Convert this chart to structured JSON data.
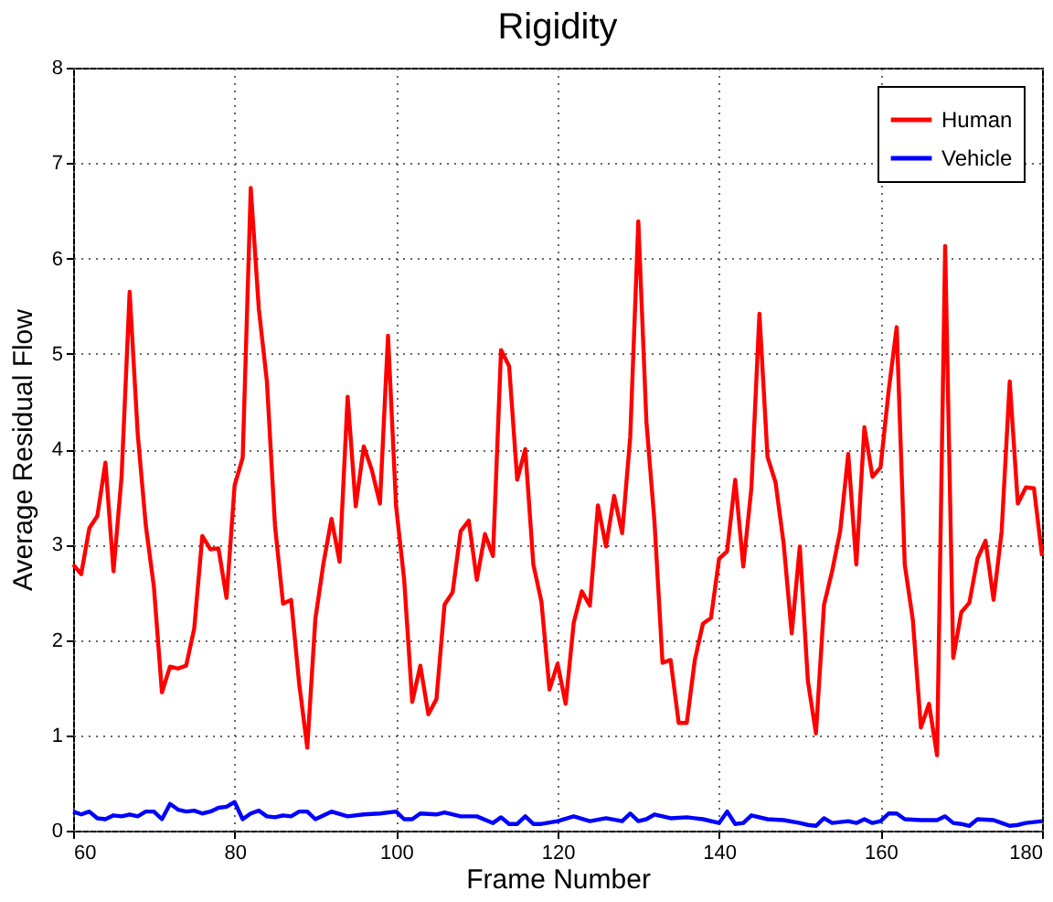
{
  "chart_data": {
    "type": "line",
    "title": "Rigidity",
    "xlabel": "Frame Number",
    "ylabel": "Average Residual Flow",
    "xlim": [
      60,
      180
    ],
    "xticks": [
      60,
      80,
      100,
      120,
      140,
      160,
      180
    ],
    "ylim": [
      0,
      8
    ],
    "yticks": [
      0,
      1,
      2,
      3,
      4,
      5,
      6,
      7,
      8
    ],
    "grid": true,
    "legend": "top right",
    "line_style": "solid",
    "series": [
      {
        "name": "Human",
        "color": "#ff0000",
        "x": [
          60,
          61,
          62,
          63,
          64,
          65,
          66,
          67,
          68,
          69,
          70,
          71,
          72,
          73,
          74,
          75,
          76,
          77,
          78,
          79,
          80,
          81,
          82,
          83,
          84,
          85,
          86,
          87,
          88,
          89,
          90,
          91,
          92,
          93,
          94,
          95,
          96,
          97,
          98,
          99,
          100,
          101,
          102,
          103,
          104,
          105,
          106,
          107,
          108,
          109,
          110,
          111,
          112,
          113,
          114,
          115,
          116,
          117,
          118,
          119,
          120,
          121,
          122,
          123,
          124,
          125,
          126,
          127,
          128,
          129,
          130,
          131,
          132,
          133,
          134,
          135,
          136,
          137,
          138,
          139,
          140,
          141,
          142,
          143,
          144,
          145,
          146,
          147,
          148,
          149,
          150,
          151,
          152,
          153,
          154,
          155,
          156,
          157,
          158,
          159,
          160,
          161,
          162,
          163,
          164,
          165,
          166,
          167,
          168,
          169,
          170,
          171,
          172,
          173,
          174,
          175,
          176,
          177,
          178,
          179,
          180
        ],
        "values": [
          2.79,
          2.69,
          3.17,
          3.3,
          3.86,
          2.72,
          3.71,
          5.65,
          4.16,
          3.2,
          2.56,
          1.45,
          1.72,
          1.7,
          1.73,
          2.12,
          3.09,
          2.95,
          2.96,
          2.44,
          3.62,
          3.91,
          6.74,
          5.47,
          4.71,
          3.2,
          2.38,
          2.42,
          1.54,
          0.87,
          2.22,
          2.8,
          3.27,
          2.82,
          4.55,
          3.4,
          4.03,
          3.78,
          3.43,
          5.19,
          3.4,
          2.63,
          1.35,
          1.73,
          1.22,
          1.38,
          2.37,
          2.5,
          3.14,
          3.25,
          2.63,
          3.11,
          2.88,
          5.04,
          4.87,
          3.68,
          4.0,
          2.79,
          2.4,
          1.48,
          1.75,
          1.33,
          2.18,
          2.51,
          2.36,
          3.41,
          2.98,
          3.51,
          3.12,
          4.13,
          6.39,
          4.29,
          3.24,
          1.76,
          1.79,
          1.13,
          1.13,
          1.79,
          2.17,
          2.23,
          2.85,
          2.93,
          3.68,
          2.77,
          3.59,
          5.42,
          3.92,
          3.65,
          3.01,
          2.07,
          2.98,
          1.57,
          1.02,
          2.37,
          2.72,
          3.14,
          3.95,
          2.79,
          4.23,
          3.71,
          3.81,
          4.61,
          5.28,
          2.79,
          2.21,
          1.08,
          1.33,
          0.79,
          6.13,
          1.81,
          2.29,
          2.39,
          2.85,
          3.04,
          2.42,
          3.14,
          4.71,
          3.43,
          3.6,
          3.59,
          2.88
        ]
      },
      {
        "name": "Vehicle",
        "color": "#0000ff",
        "x": [
          60,
          61,
          62,
          63,
          64,
          65,
          66,
          67,
          68,
          69,
          70,
          71,
          72,
          73,
          74,
          75,
          76,
          77,
          78,
          79,
          80,
          81,
          82,
          83,
          84,
          85,
          86,
          87,
          88,
          89,
          90,
          92,
          94,
          96,
          98,
          100,
          101,
          102,
          103,
          105,
          106,
          108,
          110,
          112,
          113,
          114,
          115,
          116,
          117,
          118,
          120,
          122,
          124,
          126,
          128,
          129,
          130,
          131,
          132,
          134,
          136,
          138,
          140,
          141,
          142,
          143,
          144,
          146,
          148,
          150,
          151,
          152,
          153,
          154,
          156,
          157,
          158,
          159,
          160,
          161,
          162,
          163,
          165,
          167,
          168,
          169,
          170,
          171,
          172,
          174,
          175,
          176,
          177,
          178,
          180
        ],
        "values": [
          0.2,
          0.17,
          0.2,
          0.13,
          0.12,
          0.16,
          0.15,
          0.17,
          0.15,
          0.2,
          0.2,
          0.12,
          0.28,
          0.22,
          0.2,
          0.21,
          0.18,
          0.2,
          0.24,
          0.25,
          0.3,
          0.12,
          0.18,
          0.21,
          0.15,
          0.14,
          0.16,
          0.15,
          0.2,
          0.2,
          0.12,
          0.2,
          0.15,
          0.17,
          0.18,
          0.2,
          0.12,
          0.12,
          0.18,
          0.17,
          0.19,
          0.15,
          0.15,
          0.08,
          0.14,
          0.07,
          0.07,
          0.15,
          0.07,
          0.07,
          0.1,
          0.15,
          0.1,
          0.13,
          0.1,
          0.18,
          0.1,
          0.12,
          0.17,
          0.13,
          0.14,
          0.12,
          0.08,
          0.2,
          0.07,
          0.08,
          0.16,
          0.12,
          0.11,
          0.08,
          0.06,
          0.05,
          0.13,
          0.08,
          0.1,
          0.08,
          0.12,
          0.08,
          0.1,
          0.18,
          0.18,
          0.12,
          0.11,
          0.11,
          0.15,
          0.08,
          0.07,
          0.05,
          0.12,
          0.11,
          0.08,
          0.05,
          0.06,
          0.08,
          0.1
        ]
      }
    ]
  }
}
